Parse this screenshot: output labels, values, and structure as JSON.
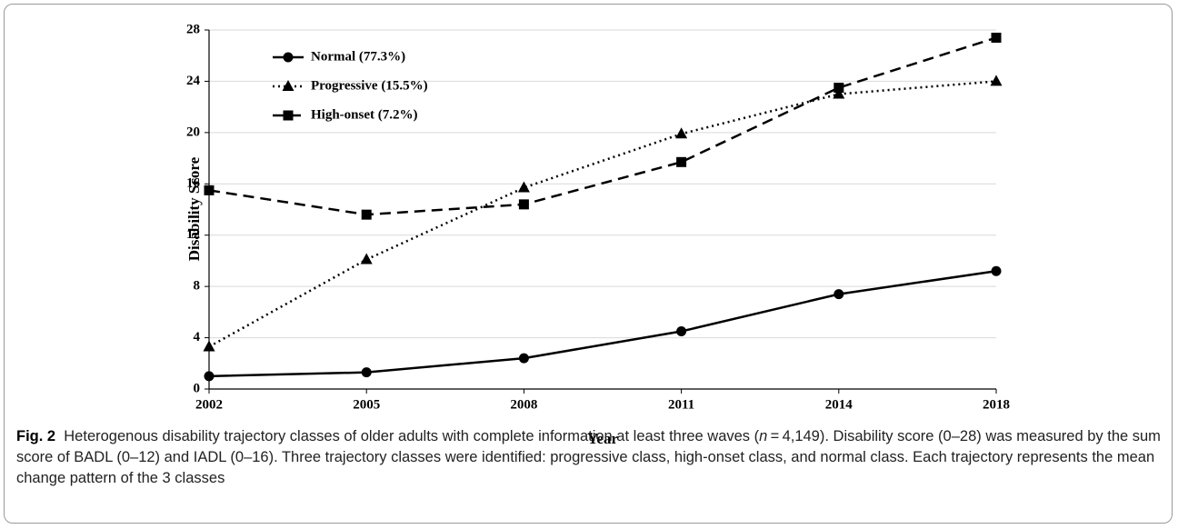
{
  "chart_data": {
    "type": "line",
    "xlabel": "Year",
    "ylabel": "Disability Score",
    "categories": [
      "2002",
      "2005",
      "2008",
      "2011",
      "2014",
      "2018"
    ],
    "series": [
      {
        "name": "Normal (77.3%)",
        "color": "#000000",
        "dash": "solid",
        "marker": "circle",
        "values": [
          1.0,
          1.3,
          2.4,
          4.5,
          7.4,
          9.2
        ]
      },
      {
        "name": "Progressive (15.5%)",
        "color": "#000000",
        "dash": "dotted",
        "marker": "triangle",
        "values": [
          3.3,
          10.1,
          15.7,
          19.9,
          23.0,
          24.0
        ]
      },
      {
        "name": "High-onset (7.2%)",
        "color": "#000000",
        "dash": "dashed",
        "marker": "square",
        "values": [
          15.5,
          13.6,
          14.4,
          17.7,
          23.5,
          27.4
        ]
      }
    ],
    "ylim": [
      0,
      28
    ],
    "yticks": [
      0,
      4,
      8,
      12,
      16,
      20,
      24,
      28
    ],
    "grid": true,
    "legend": "upper left",
    "caption_label": "Fig. 2",
    "caption_parts": [
      "Heterogenous disability trajectory classes of older adults with complete information at least three waves (",
      "n",
      " = 4,149). Disability score (0–28) was measured by the sum score of BADL (0–12) and IADL (0–16). Three trajectory classes were identified: progressive class, high-onset class, and normal class. Each trajectory represents the mean change pattern of the 3 classes"
    ]
  }
}
